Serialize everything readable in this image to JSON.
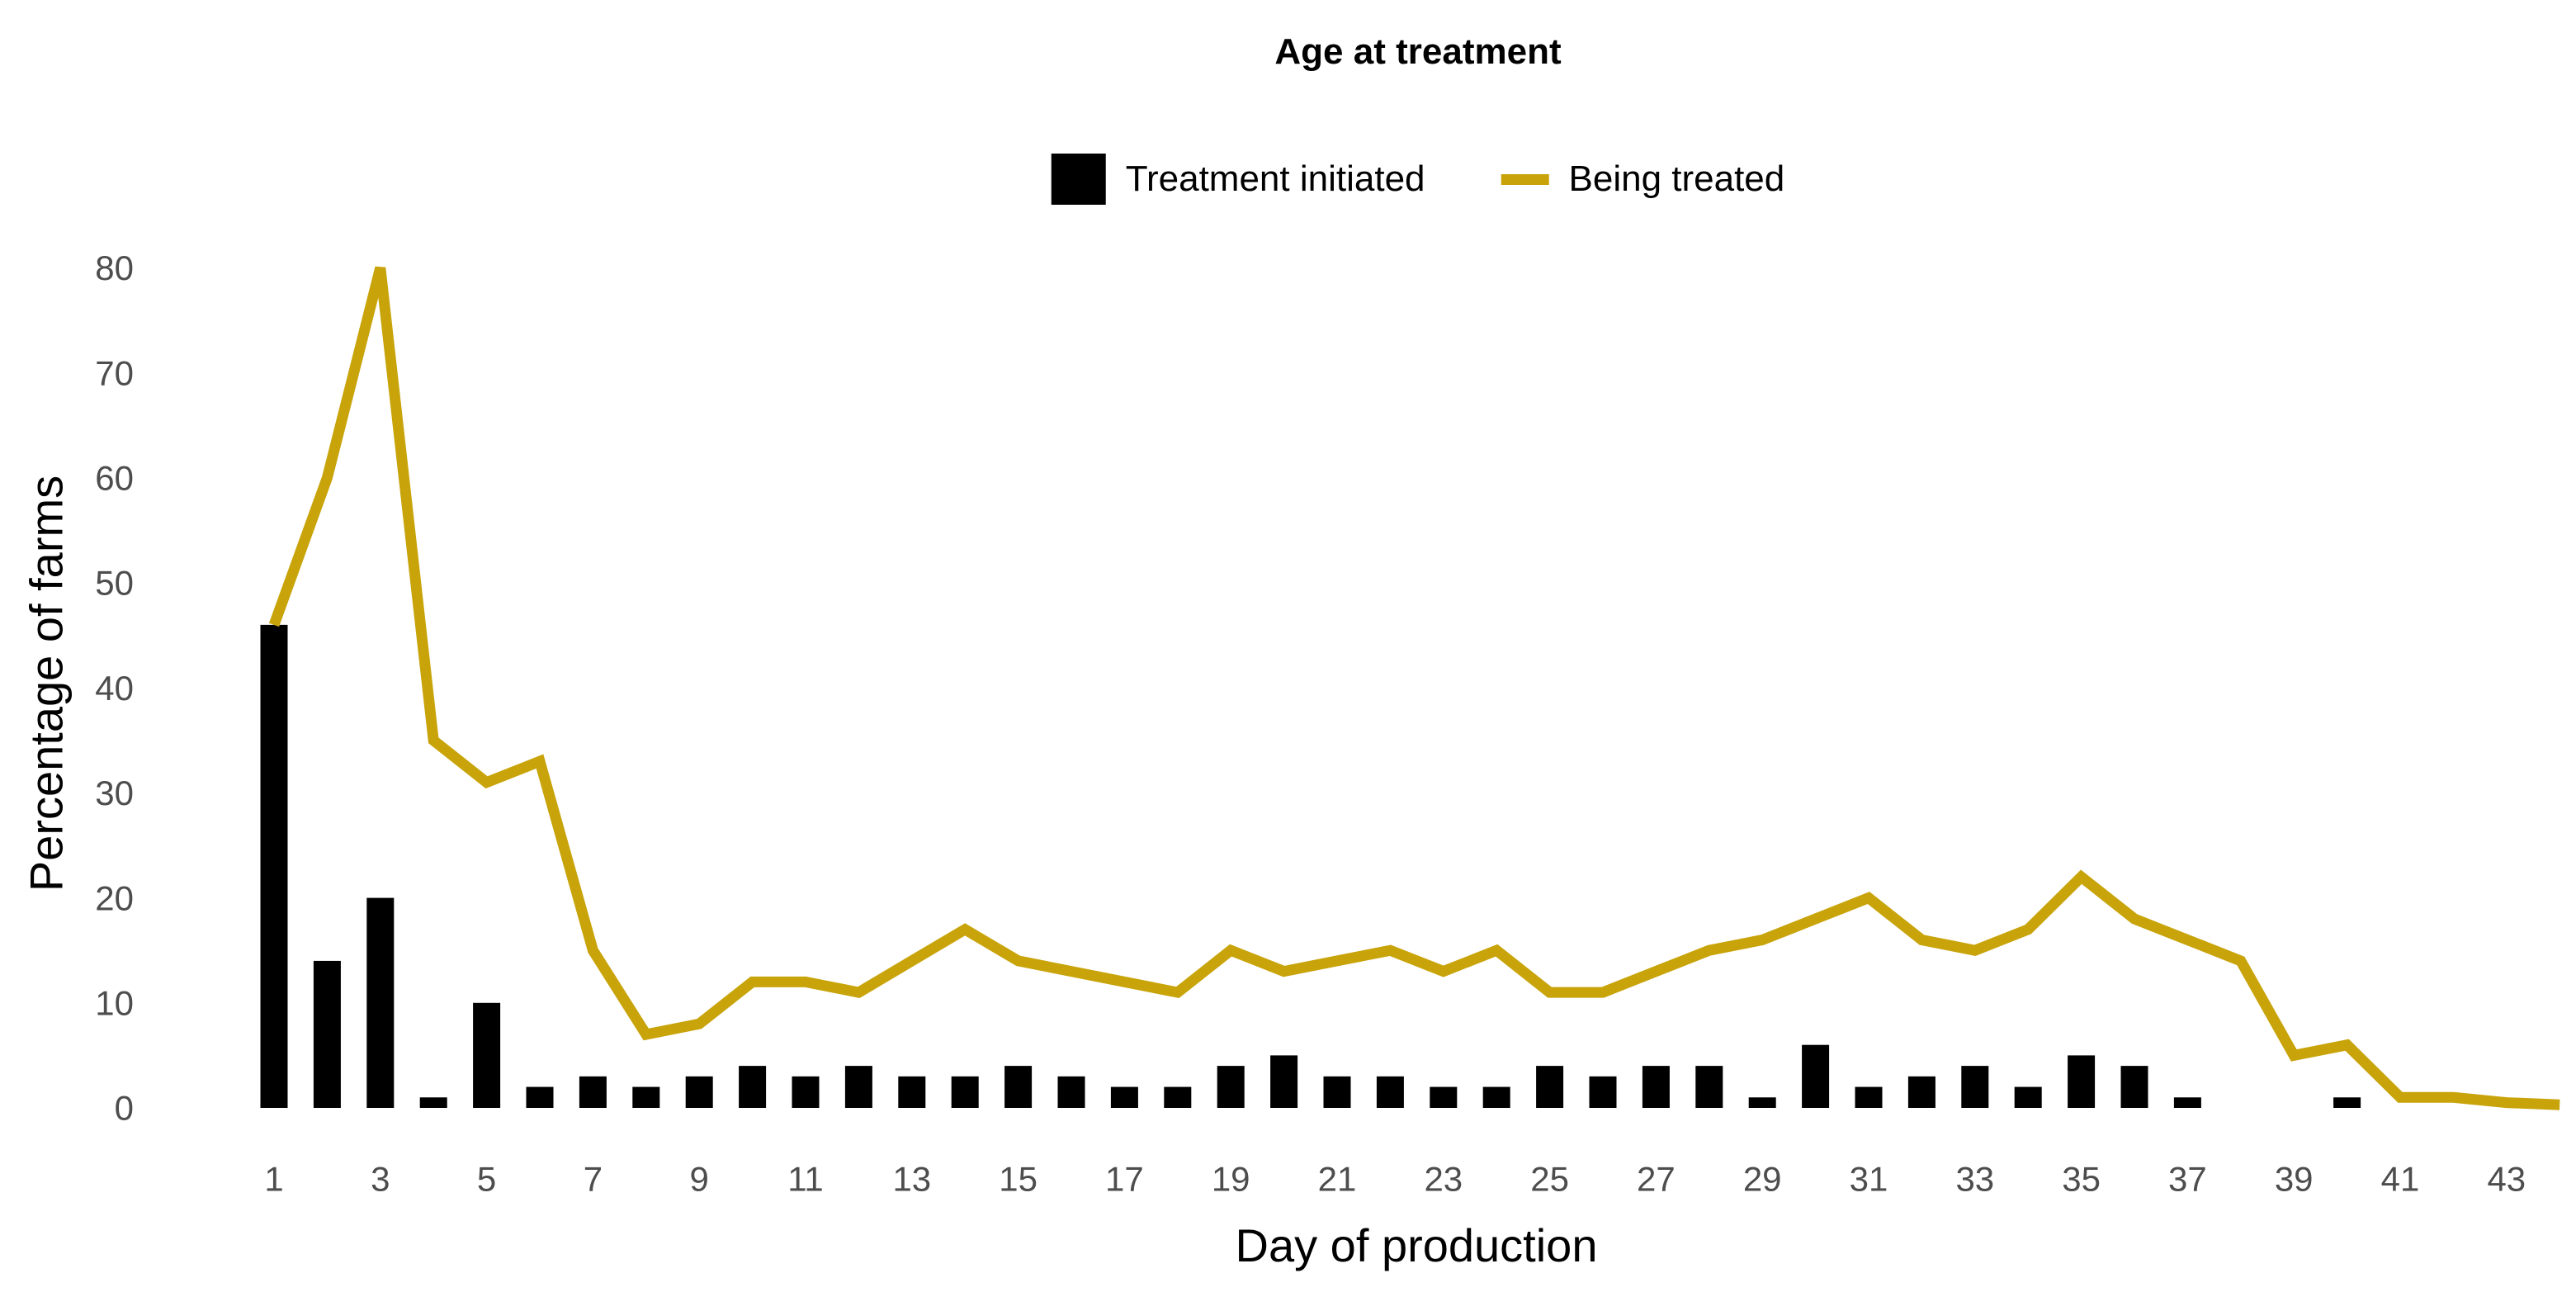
{
  "chart_data": {
    "type": "bar+line",
    "title": "Age at treatment",
    "xlabel": "Day of production",
    "ylabel": "Percentage of farms",
    "x": [
      1,
      2,
      3,
      4,
      5,
      6,
      7,
      8,
      9,
      10,
      11,
      12,
      13,
      14,
      15,
      16,
      17,
      18,
      19,
      20,
      21,
      22,
      23,
      24,
      25,
      26,
      27,
      28,
      29,
      30,
      31,
      32,
      33,
      34,
      35,
      36,
      37,
      38,
      39,
      40,
      41,
      42,
      43,
      44
    ],
    "series": [
      {
        "name": "Treatment initiated",
        "type": "bar",
        "color": "#000000",
        "values": [
          46,
          14,
          20,
          1,
          10,
          2,
          3,
          2,
          3,
          4,
          3,
          4,
          3,
          3,
          4,
          3,
          2,
          2,
          4,
          5,
          3,
          3,
          2,
          2,
          4,
          3,
          4,
          4,
          1,
          6,
          2,
          3,
          4,
          2,
          5,
          4,
          1,
          0,
          0,
          1,
          0,
          0,
          0,
          0
        ]
      },
      {
        "name": "Being treated",
        "type": "line",
        "color": "#C8A40A",
        "values": [
          46,
          60,
          80,
          35,
          31,
          33,
          15,
          7,
          8,
          12,
          12,
          11,
          14,
          17,
          14,
          13,
          12,
          11,
          15,
          13,
          14,
          15,
          13,
          15,
          11,
          11,
          13,
          15,
          16,
          18,
          20,
          16,
          15,
          17,
          22,
          18,
          16,
          14,
          5,
          6,
          1,
          1,
          0.5,
          0.3
        ]
      }
    ],
    "x_ticks": [
      1,
      3,
      5,
      7,
      9,
      11,
      13,
      15,
      17,
      19,
      21,
      23,
      25,
      27,
      29,
      31,
      33,
      35,
      37,
      39,
      41,
      43
    ],
    "y_ticks": [
      0,
      10,
      20,
      30,
      40,
      50,
      60,
      70,
      80
    ],
    "ylim": [
      0,
      80
    ],
    "grid": false,
    "axis_lines": false,
    "legend_position": "top",
    "colors": {
      "background": "#ffffff",
      "bar": "#000000",
      "line": "#C8A40A",
      "tick_label": "#4d4d4d",
      "title": "#000000"
    }
  }
}
